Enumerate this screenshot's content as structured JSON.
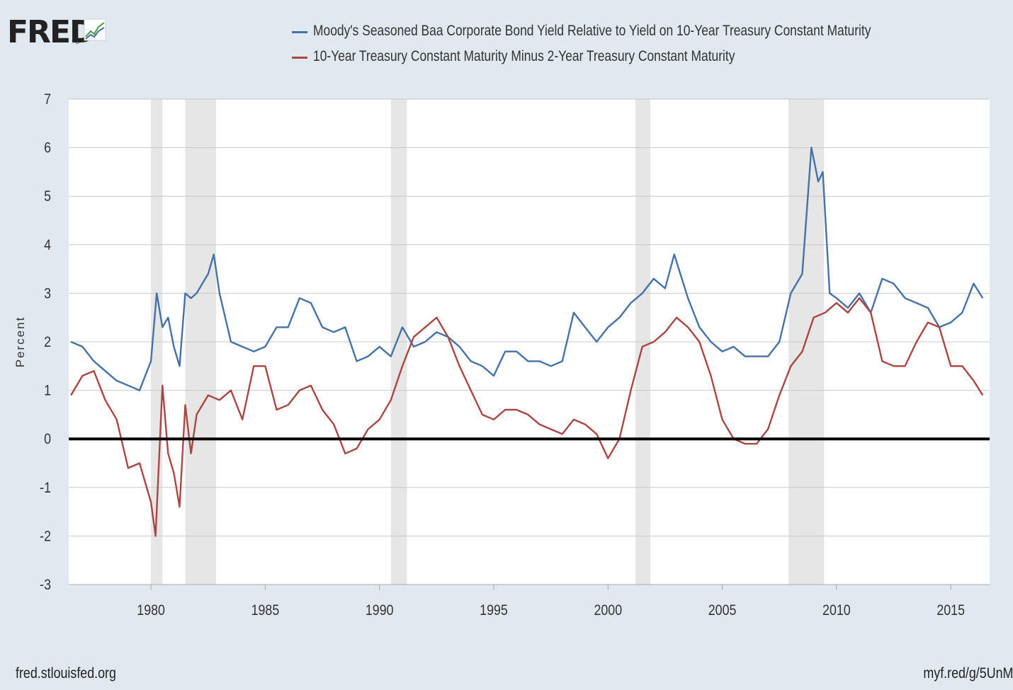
{
  "brand": {
    "name": "FRED",
    "registered": "®",
    "icon": "line-chart-icon"
  },
  "footer": {
    "source": "fred.stlouisfed.org",
    "shortlink": "myf.red/g/5UnM"
  },
  "chart_data": {
    "type": "line",
    "title": "",
    "xlabel": "",
    "ylabel": "Percent",
    "ylim": [
      -3,
      7
    ],
    "yticks": [
      -3,
      -2,
      -1,
      0,
      1,
      2,
      3,
      4,
      5,
      6,
      7
    ],
    "xlim": [
      1976.4,
      2016.7
    ],
    "xticks": [
      1980,
      1985,
      1990,
      1995,
      2000,
      2005,
      2010,
      2015
    ],
    "grid": true,
    "legend_position": "top",
    "zero_line": 0,
    "recessions": [
      [
        1980.0,
        1980.5
      ],
      [
        1981.5,
        1982.85
      ],
      [
        1990.5,
        1991.2
      ],
      [
        2001.2,
        2001.85
      ],
      [
        2007.9,
        2009.45
      ]
    ],
    "series": [
      {
        "name": "Moody's Seasoned Baa Corporate Bond Yield Relative to Yield on 10-Year Treasury Constant Maturity",
        "color": "#4572a7",
        "x": [
          1976.5,
          1977.0,
          1977.5,
          1978.0,
          1978.5,
          1979.0,
          1979.5,
          1980.0,
          1980.25,
          1980.5,
          1980.75,
          1981.0,
          1981.25,
          1981.5,
          1981.75,
          1982.0,
          1982.5,
          1982.75,
          1983.0,
          1983.5,
          1984.0,
          1984.5,
          1985.0,
          1985.5,
          1986.0,
          1986.5,
          1987.0,
          1987.5,
          1988.0,
          1988.5,
          1989.0,
          1989.5,
          1990.0,
          1990.5,
          1991.0,
          1991.5,
          1992.0,
          1992.5,
          1993.0,
          1993.5,
          1994.0,
          1994.5,
          1995.0,
          1995.5,
          1996.0,
          1996.5,
          1997.0,
          1997.5,
          1998.0,
          1998.5,
          1999.0,
          1999.5,
          2000.0,
          2000.5,
          2001.0,
          2001.5,
          2002.0,
          2002.5,
          2002.9,
          2003.5,
          2004.0,
          2004.5,
          2005.0,
          2005.5,
          2006.0,
          2006.5,
          2007.0,
          2007.5,
          2008.0,
          2008.5,
          2008.9,
          2009.2,
          2009.4,
          2009.7,
          2010.0,
          2010.5,
          2011.0,
          2011.5,
          2012.0,
          2012.5,
          2013.0,
          2013.5,
          2014.0,
          2014.5,
          2015.0,
          2015.5,
          2016.0,
          2016.4
        ],
        "values": [
          2.0,
          1.9,
          1.6,
          1.4,
          1.2,
          1.1,
          1.0,
          1.6,
          3.0,
          2.3,
          2.5,
          1.9,
          1.5,
          3.0,
          2.9,
          3.0,
          3.4,
          3.8,
          3.0,
          2.0,
          1.9,
          1.8,
          1.9,
          2.3,
          2.3,
          2.9,
          2.8,
          2.3,
          2.2,
          2.3,
          1.6,
          1.7,
          1.9,
          1.7,
          2.3,
          1.9,
          2.0,
          2.2,
          2.1,
          1.9,
          1.6,
          1.5,
          1.3,
          1.8,
          1.8,
          1.6,
          1.6,
          1.5,
          1.6,
          2.6,
          2.3,
          2.0,
          2.3,
          2.5,
          2.8,
          3.0,
          3.3,
          3.1,
          3.8,
          2.9,
          2.3,
          2.0,
          1.8,
          1.9,
          1.7,
          1.7,
          1.7,
          2.0,
          3.0,
          3.4,
          6.0,
          5.3,
          5.5,
          3.0,
          2.9,
          2.7,
          3.0,
          2.6,
          3.3,
          3.2,
          2.9,
          2.8,
          2.7,
          2.3,
          2.4,
          2.6,
          3.2,
          2.9
        ]
      },
      {
        "name": "10-Year Treasury Constant Maturity Minus 2-Year Treasury Constant Maturity",
        "color": "#aa4643",
        "x": [
          1976.5,
          1977.0,
          1977.5,
          1978.0,
          1978.5,
          1979.0,
          1979.5,
          1980.0,
          1980.2,
          1980.5,
          1980.75,
          1981.0,
          1981.25,
          1981.5,
          1981.75,
          1982.0,
          1982.5,
          1983.0,
          1983.5,
          1984.0,
          1984.5,
          1985.0,
          1985.5,
          1986.0,
          1986.5,
          1987.0,
          1987.5,
          1988.0,
          1988.5,
          1989.0,
          1989.5,
          1990.0,
          1990.5,
          1991.0,
          1991.5,
          1992.0,
          1992.5,
          1993.0,
          1993.5,
          1994.0,
          1994.5,
          1995.0,
          1995.5,
          1996.0,
          1996.5,
          1997.0,
          1997.5,
          1998.0,
          1998.5,
          1999.0,
          1999.5,
          2000.0,
          2000.5,
          2001.0,
          2001.5,
          2002.0,
          2002.5,
          2003.0,
          2003.5,
          2004.0,
          2004.5,
          2005.0,
          2005.5,
          2006.0,
          2006.5,
          2007.0,
          2007.5,
          2008.0,
          2008.5,
          2009.0,
          2009.5,
          2010.0,
          2010.5,
          2011.0,
          2011.5,
          2012.0,
          2012.5,
          2013.0,
          2013.5,
          2014.0,
          2014.5,
          2015.0,
          2015.5,
          2016.0,
          2016.4
        ],
        "values": [
          0.9,
          1.3,
          1.4,
          0.8,
          0.4,
          -0.6,
          -0.5,
          -1.3,
          -2.0,
          1.1,
          -0.3,
          -0.7,
          -1.4,
          0.7,
          -0.3,
          0.5,
          0.9,
          0.8,
          1.0,
          0.4,
          1.5,
          1.5,
          0.6,
          0.7,
          1.0,
          1.1,
          0.6,
          0.3,
          -0.3,
          -0.2,
          0.2,
          0.4,
          0.8,
          1.5,
          2.1,
          2.3,
          2.5,
          2.1,
          1.5,
          1.0,
          0.5,
          0.4,
          0.6,
          0.6,
          0.5,
          0.3,
          0.2,
          0.1,
          0.4,
          0.3,
          0.1,
          -0.4,
          0.0,
          1.0,
          1.9,
          2.0,
          2.2,
          2.5,
          2.3,
          2.0,
          1.3,
          0.4,
          0.0,
          -0.1,
          -0.1,
          0.2,
          0.9,
          1.5,
          1.8,
          2.5,
          2.6,
          2.8,
          2.6,
          2.9,
          2.6,
          1.6,
          1.5,
          1.5,
          2.0,
          2.4,
          2.3,
          1.5,
          1.5,
          1.2,
          0.9
        ]
      }
    ]
  }
}
